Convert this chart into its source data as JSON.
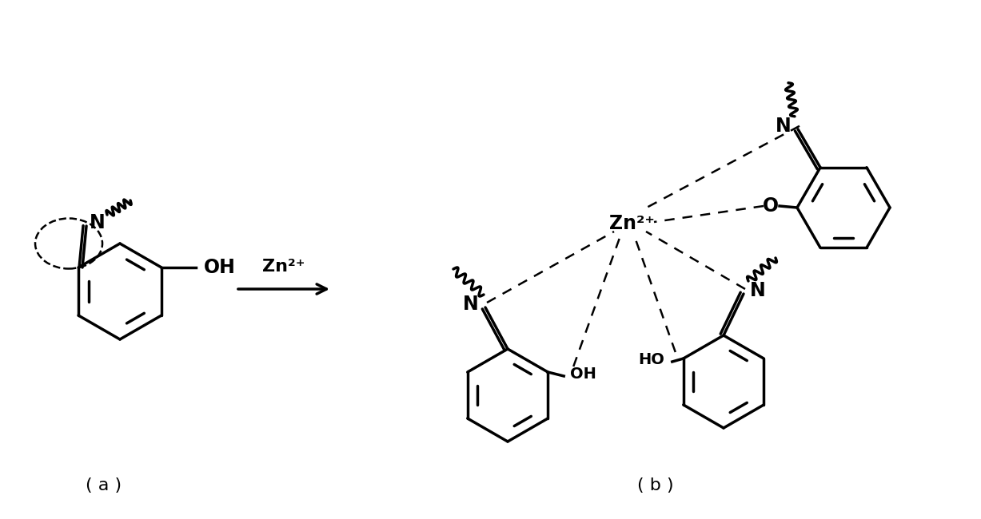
{
  "background_color": "#ffffff",
  "title_a": "( a )",
  "title_b": "( b )",
  "arrow_label": "Zn²⁺",
  "zn_label": "Zn²⁺",
  "oh_label": "OH",
  "ho_label": "HO",
  "n_label": "N",
  "o_label": "O",
  "figsize": [
    12.27,
    6.5
  ],
  "dpi": 100
}
